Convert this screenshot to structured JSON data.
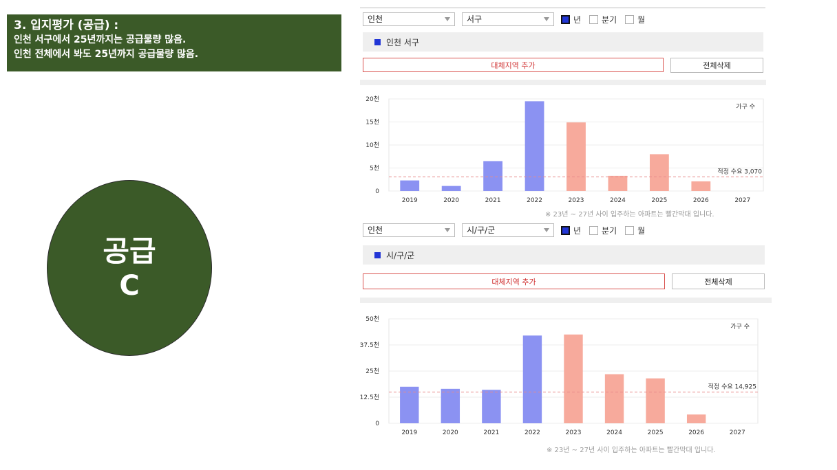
{
  "header": {
    "title": "3. 입지평가 (공급) :",
    "line1": "인천 서구에서 25년까지는 공급물량 많음.",
    "line2": "인천 전체에서 봐도 25년까지 공급물량 많음."
  },
  "grade": {
    "label": "공급",
    "value": "C"
  },
  "colors": {
    "panel_bg": "#3b5a28",
    "bar_past": "#8b92f2",
    "bar_future": "#f7aa9c",
    "demand_line": "#e88a8a",
    "accent": "#2236d6"
  },
  "panels": [
    {
      "region_select": "인천",
      "district_select": "서구",
      "period_options": [
        {
          "label": "년",
          "checked": true
        },
        {
          "label": "분기",
          "checked": false
        },
        {
          "label": "월",
          "checked": false
        }
      ],
      "legend_label": "인천 서구",
      "add_region_label": "대체지역 추가",
      "delete_all_label": "전체삭제",
      "note": "※ 23년 ~ 27년 사이 입주하는 아파트는 빨간막대 입니다.",
      "chart_data": {
        "type": "bar",
        "categories": [
          "2019",
          "2020",
          "2021",
          "2022",
          "2023",
          "2024",
          "2025",
          "2026",
          "2027"
        ],
        "values": [
          2300,
          1100,
          6500,
          19500,
          14900,
          3300,
          8000,
          2100,
          0
        ],
        "future_from": "2023",
        "ylim": [
          0,
          20000
        ],
        "yticks": [
          0,
          5000,
          10000,
          15000,
          20000
        ],
        "ytick_labels": [
          "0",
          "5천",
          "10천",
          "15천",
          "20천"
        ],
        "unit_label": "가구 수",
        "demand_label": "적정 수요 3,070",
        "demand_value": 3070,
        "grid": true
      }
    },
    {
      "region_select": "인천",
      "district_select": "시/구/군",
      "period_options": [
        {
          "label": "년",
          "checked": true
        },
        {
          "label": "분기",
          "checked": false
        },
        {
          "label": "월",
          "checked": false
        }
      ],
      "legend_label": "시/구/군",
      "add_region_label": "대체지역 추가",
      "delete_all_label": "전체삭제",
      "note": "※ 23년 ~ 27년 사이 입주하는 아파트는 빨간막대 입니다.",
      "chart_data": {
        "type": "bar",
        "categories": [
          "2019",
          "2020",
          "2021",
          "2022",
          "2023",
          "2024",
          "2025",
          "2026",
          "2027"
        ],
        "values": [
          17500,
          16500,
          16000,
          42000,
          42500,
          23500,
          21500,
          4200,
          0
        ],
        "future_from": "2023",
        "ylim": [
          0,
          50000
        ],
        "yticks": [
          0,
          12500,
          25000,
          37500,
          50000
        ],
        "ytick_labels": [
          "0",
          "12.5천",
          "25천",
          "37.5천",
          "50천"
        ],
        "unit_label": "가구 수",
        "demand_label": "적정 수요 14,925",
        "demand_value": 14925,
        "grid": true
      }
    }
  ]
}
